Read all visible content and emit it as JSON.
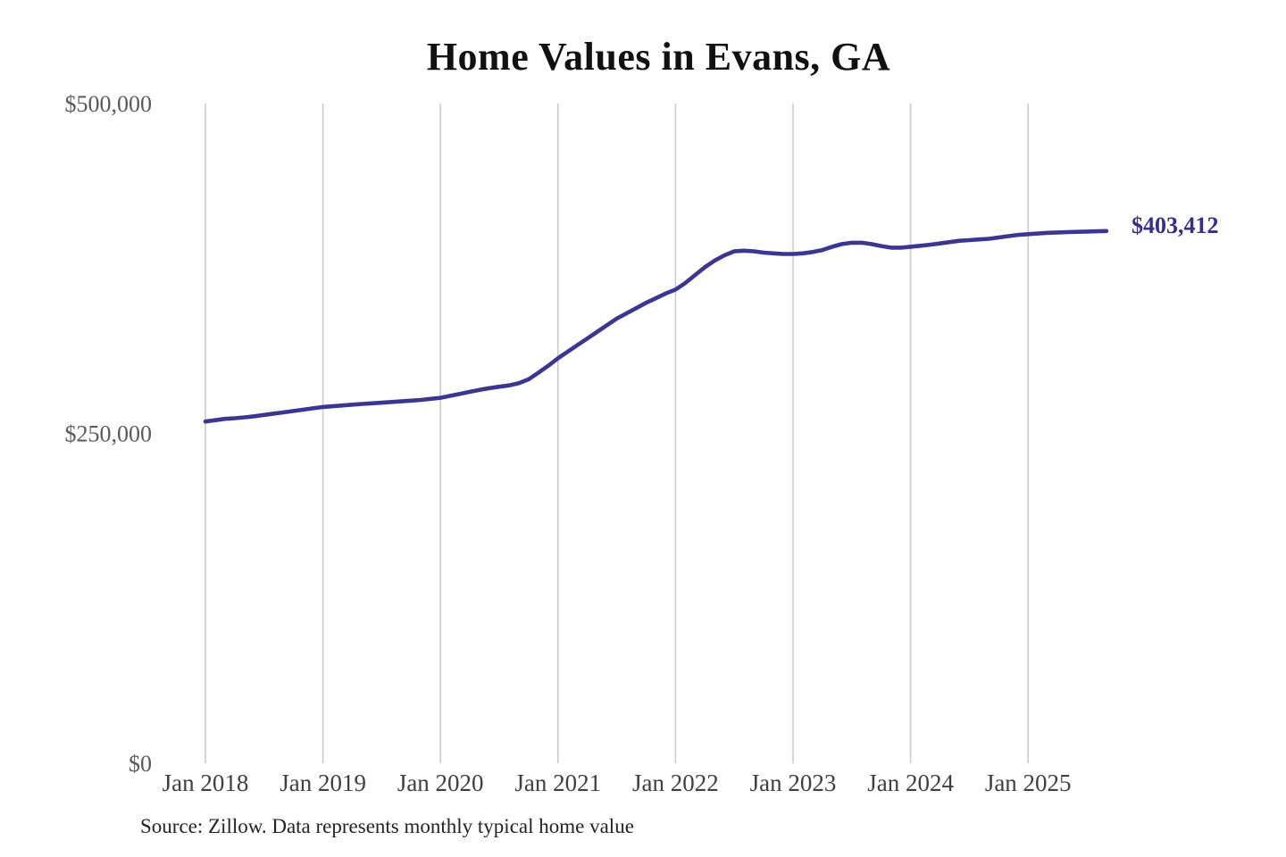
{
  "title": "Home Values in Evans, GA",
  "source_note": "Source: Zillow. Data represents monthly typical home value",
  "latest_value_label": "$403,412",
  "colors": {
    "background": "#ffffff",
    "title": "#111111",
    "line": "#3b3691",
    "latest_label": "#343088",
    "gridline": "#cccccc",
    "y_tick": "#5a5a5a",
    "x_tick": "#3f3f3f",
    "source": "#232323"
  },
  "chart_data": {
    "type": "line",
    "title": "Home Values in Evans, GA",
    "xlabel": "",
    "ylabel": "",
    "ylim": [
      0,
      500000
    ],
    "grid": "vertical-only",
    "legend": "none",
    "y_ticks": [
      {
        "value": 0,
        "label": "$0"
      },
      {
        "value": 250000,
        "label": "$250,000"
      },
      {
        "value": 500000,
        "label": "$500,000"
      }
    ],
    "x_ticks": [
      "Jan 2018",
      "Jan 2019",
      "Jan 2020",
      "Jan 2021",
      "Jan 2022",
      "Jan 2023",
      "Jan 2024",
      "Jan 2025"
    ],
    "series": [
      {
        "name": "Monthly typical home value",
        "start_month": "2018-01",
        "end_month": "2025-09",
        "months_per_point": 1,
        "values": [
          259000,
          260000,
          261000,
          261500,
          262200,
          263000,
          264000,
          265000,
          266000,
          267000,
          268000,
          269000,
          270000,
          270600,
          271200,
          271800,
          272300,
          272800,
          273300,
          273800,
          274300,
          274800,
          275400,
          276200,
          277000,
          278500,
          280000,
          281500,
          283000,
          284300,
          285400,
          286400,
          288000,
          291000,
          296000,
          301200,
          307000,
          312000,
          317000,
          322000,
          327000,
          332000,
          337000,
          341000,
          345000,
          349000,
          352500,
          356000,
          359000,
          364000,
          370000,
          376000,
          381000,
          385000,
          388000,
          388500,
          388000,
          387000,
          386500,
          386000,
          386000,
          386500,
          387500,
          389000,
          391500,
          393500,
          394500,
          394500,
          393500,
          392000,
          390800,
          390800,
          391500,
          392200,
          393000,
          394000,
          395000,
          396000,
          396500,
          397000,
          397500,
          398500,
          399500,
          400500,
          401000,
          401500,
          402000,
          402300,
          402600,
          402800,
          403000,
          403200,
          403412
        ]
      }
    ],
    "final_value": 403412,
    "annotations": [
      {
        "text": "$403,412",
        "position": "line-end"
      }
    ]
  }
}
